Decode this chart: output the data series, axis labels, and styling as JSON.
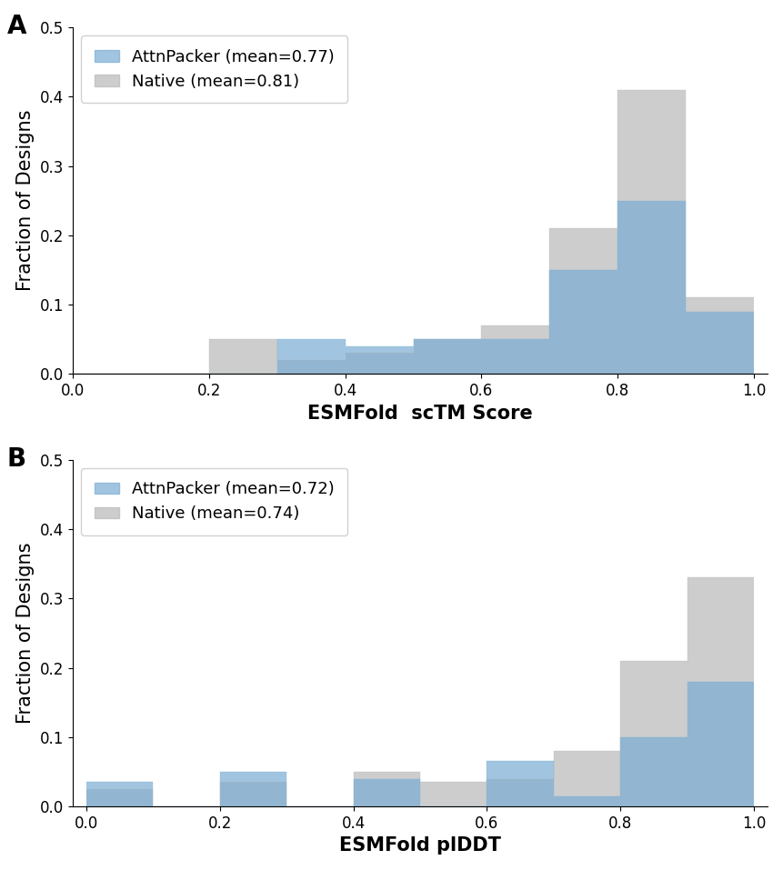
{
  "panel_A": {
    "title_label": "A",
    "xlabel": "ESMFold  scTM Score",
    "ylabel": "Fraction of Designs",
    "xlim": [
      0.0,
      1.02
    ],
    "ylim": [
      0.0,
      0.5
    ],
    "yticks": [
      0.0,
      0.1,
      0.2,
      0.3,
      0.4,
      0.5
    ],
    "xticks": [
      0.0,
      0.2,
      0.4,
      0.6,
      0.8,
      1.0
    ],
    "bin_edges": [
      0.0,
      0.1,
      0.2,
      0.3,
      0.4,
      0.5,
      0.6,
      0.7,
      0.8,
      0.9,
      1.0
    ],
    "attnpacker_values": [
      0.0,
      0.0,
      0.0,
      0.05,
      0.04,
      0.05,
      0.05,
      0.15,
      0.25,
      0.09
    ],
    "native_values": [
      0.0,
      0.0,
      0.05,
      0.02,
      0.03,
      0.05,
      0.07,
      0.21,
      0.41,
      0.11
    ],
    "attnpacker_label": "AttnPacker (mean=0.77)",
    "native_label": "Native (mean=0.81)",
    "attnpacker_color": "#7aadd4",
    "native_color": "#b8b8b8",
    "alpha": 0.7
  },
  "panel_B": {
    "title_label": "B",
    "xlabel": "ESMFold plDDT",
    "ylabel": "Fraction of Designs",
    "xlim": [
      -0.02,
      1.02
    ],
    "ylim": [
      0.0,
      0.5
    ],
    "yticks": [
      0.0,
      0.1,
      0.2,
      0.3,
      0.4,
      0.5
    ],
    "xticks": [
      0.0,
      0.2,
      0.4,
      0.6,
      0.8,
      1.0
    ],
    "bin_edges": [
      0.0,
      0.1,
      0.2,
      0.3,
      0.4,
      0.5,
      0.6,
      0.7,
      0.8,
      0.9,
      1.0
    ],
    "attnpacker_values": [
      0.035,
      0.0,
      0.05,
      0.0,
      0.04,
      0.0,
      0.065,
      0.015,
      0.1,
      0.18
    ],
    "native_values": [
      0.025,
      0.0,
      0.035,
      0.0,
      0.05,
      0.035,
      0.04,
      0.08,
      0.21,
      0.33
    ],
    "attnpacker_label": "AttnPacker (mean=0.72)",
    "native_label": "Native (mean=0.74)",
    "attnpacker_color": "#7aadd4",
    "native_color": "#b8b8b8",
    "alpha": 0.7
  },
  "figure_bg": "#ffffff",
  "legend_fontsize": 13,
  "axis_label_fontsize": 15,
  "tick_fontsize": 12,
  "panel_label_fontsize": 20
}
